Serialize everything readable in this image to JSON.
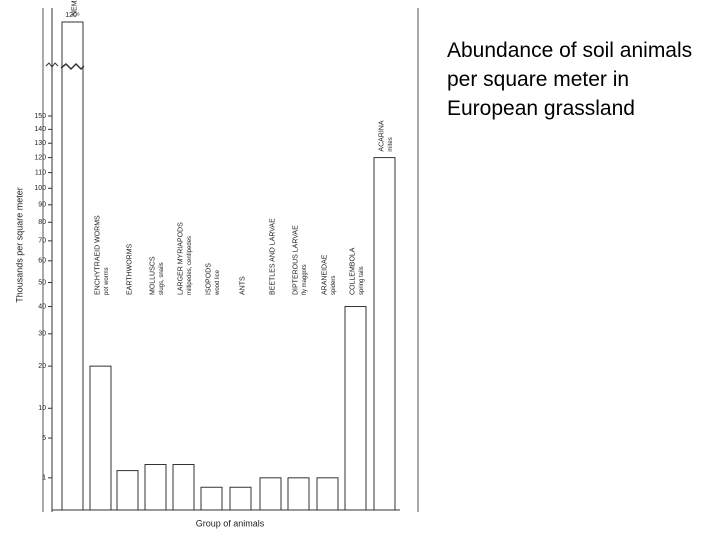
{
  "slide_text": "Abundance of soil animals per square meter in European grassland",
  "chart_data": {
    "type": "bar",
    "y_label": "Thousands per square meter",
    "x_label": "Group of animals",
    "categories": [
      "NEMATODES",
      "ENCHYTRAEID WORMS",
      "EARTHWORMS",
      "MOLLUSCS",
      "LARGER MYRIAPODS",
      "ISOPODS",
      "ANTS",
      "BEETLES AND LARVAE",
      "DIPTEROUS LARVAE",
      "ARANEIDAE",
      "COLLEMBOLA",
      "ACARINA"
    ],
    "sublabels": [
      null,
      "pot worms",
      null,
      "slugs, snails",
      "millipedes, centipedes",
      "wood lice",
      null,
      null,
      "fly maggots",
      "spiders",
      "spring tails",
      "mites"
    ],
    "values": [
      120000,
      20,
      1.5,
      2,
      2,
      0.5,
      0.5,
      1,
      1,
      1,
      40,
      120
    ],
    "value_labels": [
      "120⁶",
      null,
      null,
      null,
      null,
      null,
      null,
      null,
      null,
      null,
      null,
      null
    ],
    "color": "#ffffff",
    "scale": "sqrt",
    "axis_break": true,
    "ylim": [
      0,
      150
    ],
    "yticks": [
      1,
      5,
      10,
      20,
      30,
      40,
      50,
      60,
      70,
      80,
      90,
      100,
      110,
      120,
      130,
      140,
      150
    ]
  }
}
